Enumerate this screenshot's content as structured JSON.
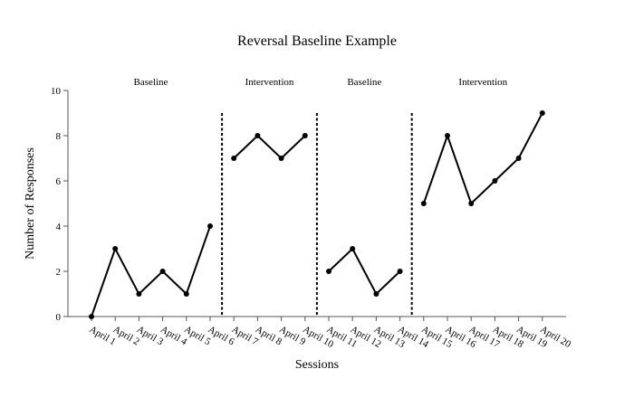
{
  "chart_data": {
    "type": "line",
    "title": "Reversal Baseline Example",
    "xlabel": "Sessions",
    "ylabel": "Number of Responses",
    "ylim": [
      0,
      10
    ],
    "yticks": [
      0,
      2,
      4,
      6,
      8,
      10
    ],
    "categories": [
      "April 1",
      "April 2",
      "April 3",
      "April 4",
      "April 5",
      "April 6",
      "April 7",
      "April 8",
      "April 9",
      "April 10",
      "April 11",
      "April 12",
      "April 13",
      "April 14",
      "April 15",
      "April 16",
      "April 17",
      "April 18",
      "April 19",
      "April 20"
    ],
    "phases": [
      {
        "label": "Baseline",
        "start": 0,
        "end": 5,
        "values": [
          0,
          3,
          1,
          2,
          1,
          4
        ]
      },
      {
        "label": "Intervention",
        "start": 6,
        "end": 9,
        "values": [
          7,
          8,
          7,
          8
        ]
      },
      {
        "label": "Baseline",
        "start": 10,
        "end": 13,
        "values": [
          2,
          3,
          1,
          2
        ]
      },
      {
        "label": "Intervention",
        "start": 14,
        "end": 19,
        "values": [
          5,
          8,
          5,
          6,
          7,
          9
        ]
      }
    ],
    "grid": false,
    "legend": "none"
  }
}
